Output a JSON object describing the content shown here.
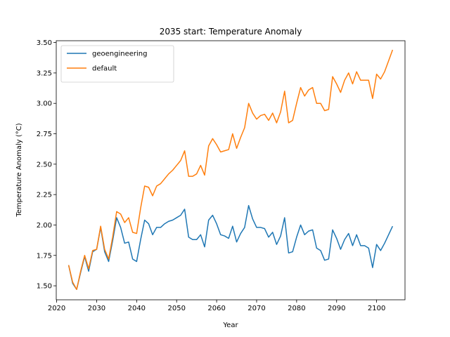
{
  "chart_data": {
    "type": "line",
    "title": "2035 start: Temperature Anomaly",
    "xlabel": "Year",
    "ylabel": "Temperature Anomaly (°C)",
    "xlim": [
      2019.9,
      2107.1
    ],
    "ylim": [
      1.385,
      3.515
    ],
    "xticks": [
      2020,
      2030,
      2040,
      2050,
      2060,
      2070,
      2080,
      2090,
      2100
    ],
    "yticks": [
      1.5,
      1.75,
      2.0,
      2.25,
      2.5,
      2.75,
      3.0,
      3.25,
      3.5
    ],
    "grid": false,
    "legend_position": "top-left",
    "x": [
      2023,
      2024,
      2025,
      2026,
      2027,
      2028,
      2029,
      2030,
      2031,
      2032,
      2033,
      2034,
      2035,
      2036,
      2037,
      2038,
      2039,
      2040,
      2041,
      2042,
      2043,
      2044,
      2045,
      2046,
      2047,
      2048,
      2049,
      2050,
      2051,
      2052,
      2053,
      2054,
      2055,
      2056,
      2057,
      2058,
      2059,
      2060,
      2061,
      2062,
      2063,
      2064,
      2065,
      2066,
      2067,
      2068,
      2069,
      2070,
      2071,
      2072,
      2073,
      2074,
      2075,
      2076,
      2077,
      2078,
      2079,
      2080,
      2081,
      2082,
      2083,
      2084,
      2085,
      2086,
      2087,
      2088,
      2089,
      2090,
      2091,
      2092,
      2093,
      2094,
      2095,
      2096,
      2097,
      2098,
      2099,
      2100,
      2101,
      2102,
      2103,
      2104
    ],
    "series": [
      {
        "name": "geoengineering",
        "color": "#1f77b4",
        "values": [
          1.67,
          1.52,
          1.47,
          1.61,
          1.74,
          1.62,
          1.78,
          1.8,
          1.98,
          1.78,
          1.7,
          1.87,
          2.06,
          1.98,
          1.85,
          1.86,
          1.72,
          1.7,
          1.88,
          2.04,
          2.01,
          1.92,
          1.98,
          1.98,
          2.01,
          2.03,
          2.04,
          2.06,
          2.08,
          2.13,
          1.9,
          1.88,
          1.88,
          1.92,
          1.82,
          2.04,
          2.08,
          2.01,
          1.92,
          1.91,
          1.89,
          1.99,
          1.86,
          1.93,
          1.98,
          2.16,
          2.05,
          1.98,
          1.98,
          1.97,
          1.9,
          1.94,
          1.84,
          1.91,
          2.06,
          1.77,
          1.78,
          1.9,
          2.0,
          1.92,
          1.95,
          1.96,
          1.81,
          1.79,
          1.71,
          1.72,
          1.96,
          1.89,
          1.8,
          1.88,
          1.93,
          1.83,
          1.92,
          1.83,
          1.83,
          1.81,
          1.65,
          1.84,
          1.79,
          1.85,
          1.92,
          1.99
        ]
      },
      {
        "name": "default",
        "color": "#ff7f0e",
        "values": [
          1.67,
          1.53,
          1.47,
          1.62,
          1.75,
          1.64,
          1.79,
          1.8,
          1.99,
          1.8,
          1.72,
          1.9,
          2.11,
          2.09,
          2.02,
          2.06,
          1.94,
          1.93,
          2.14,
          2.32,
          2.31,
          2.24,
          2.32,
          2.34,
          2.38,
          2.42,
          2.45,
          2.49,
          2.53,
          2.61,
          2.4,
          2.4,
          2.42,
          2.49,
          2.41,
          2.65,
          2.71,
          2.66,
          2.6,
          2.61,
          2.62,
          2.75,
          2.63,
          2.72,
          2.8,
          3.0,
          2.92,
          2.87,
          2.9,
          2.91,
          2.86,
          2.92,
          2.84,
          2.93,
          3.1,
          2.84,
          2.86,
          3.0,
          3.13,
          3.06,
          3.11,
          3.13,
          3.0,
          3.0,
          2.94,
          2.95,
          3.22,
          3.16,
          3.09,
          3.19,
          3.25,
          3.16,
          3.26,
          3.19,
          3.19,
          3.19,
          3.04,
          3.24,
          3.2,
          3.26,
          3.35,
          3.44
        ]
      }
    ]
  }
}
